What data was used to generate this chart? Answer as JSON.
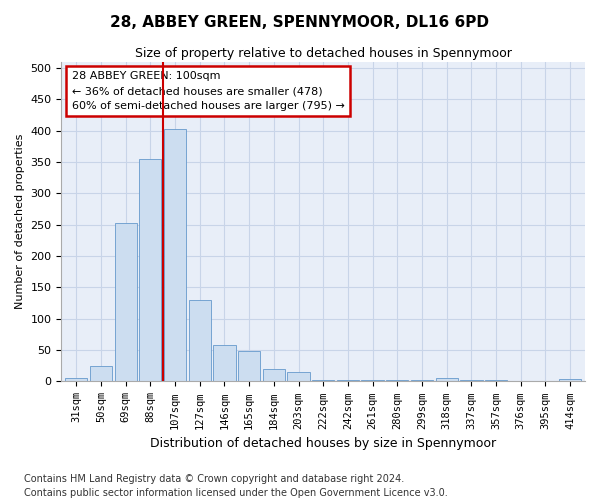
{
  "title": "28, ABBEY GREEN, SPENNYMOOR, DL16 6PD",
  "subtitle": "Size of property relative to detached houses in Spennymoor",
  "xlabel": "Distribution of detached houses by size in Spennymoor",
  "ylabel": "Number of detached properties",
  "categories": [
    "31sqm",
    "50sqm",
    "69sqm",
    "88sqm",
    "107sqm",
    "127sqm",
    "146sqm",
    "165sqm",
    "184sqm",
    "203sqm",
    "222sqm",
    "242sqm",
    "261sqm",
    "280sqm",
    "299sqm",
    "318sqm",
    "337sqm",
    "357sqm",
    "376sqm",
    "395sqm",
    "414sqm"
  ],
  "values": [
    5,
    25,
    252,
    355,
    403,
    130,
    58,
    48,
    20,
    15,
    2,
    2,
    2,
    2,
    2,
    6,
    2,
    2,
    0,
    0,
    4
  ],
  "bar_color": "#ccddf0",
  "bar_edge_color": "#6699cc",
  "grid_color": "#c8d4e8",
  "bg_color": "#e8eef8",
  "annotation_text": "28 ABBEY GREEN: 100sqm\n← 36% of detached houses are smaller (478)\n60% of semi-detached houses are larger (795) →",
  "annotation_box_color": "#ffffff",
  "annotation_border_color": "#cc0000",
  "property_line_color": "#cc0000",
  "property_line_index": 3.5,
  "ylim": [
    0,
    510
  ],
  "yticks": [
    0,
    50,
    100,
    150,
    200,
    250,
    300,
    350,
    400,
    450,
    500
  ],
  "footer": "Contains HM Land Registry data © Crown copyright and database right 2024.\nContains public sector information licensed under the Open Government Licence v3.0.",
  "title_fontsize": 11,
  "subtitle_fontsize": 9,
  "xlabel_fontsize": 9,
  "ylabel_fontsize": 8,
  "tick_fontsize": 8,
  "xtick_fontsize": 7.5,
  "footer_fontsize": 7
}
